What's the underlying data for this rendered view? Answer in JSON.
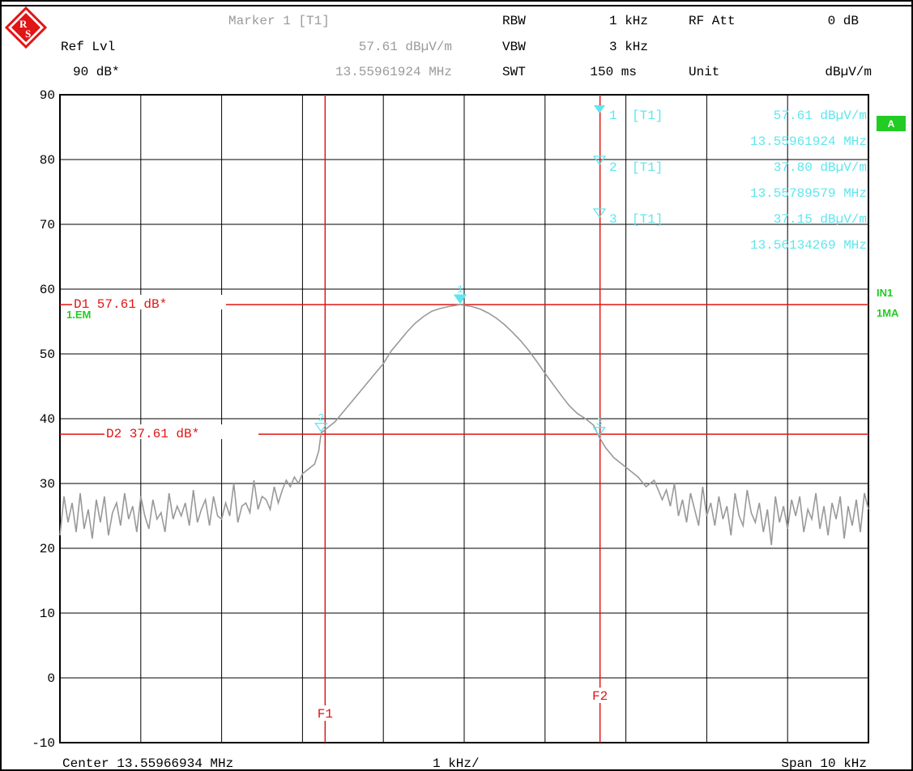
{
  "header": {
    "marker_title": "Marker 1 [T1]",
    "ref_lvl_label": "Ref Lvl",
    "ref_lvl_value": "90 dB*",
    "marker_level": "57.61 dBµV/m",
    "marker_freq": "13.55961924 MHz",
    "rbw_label": "RBW",
    "rbw_value": "1 kHz",
    "vbw_label": "VBW",
    "vbw_value": "3 kHz",
    "swt_label": "SWT",
    "swt_value": "150 ms",
    "rfatt_label": "RF Att",
    "rfatt_value": "0 dB",
    "unit_label": "Unit",
    "unit_value": "dBµV/m"
  },
  "marker_table": [
    {
      "id": "1",
      "tag": "[T1]",
      "level": "57.61 dBµV/m",
      "freq": "13.55961924 MHz"
    },
    {
      "id": "2",
      "tag": "[T1]",
      "level": "37.80 dBµV/m",
      "freq": "13.55789579 MHz"
    },
    {
      "id": "3",
      "tag": "[T1]",
      "level": "37.15 dBµV/m",
      "freq": "13.56134269 MHz"
    }
  ],
  "side_labels": {
    "a": "A",
    "in1": "IN1",
    "ma": "1MA",
    "trace_mode": "1.EM"
  },
  "footer": {
    "center": "Center 13.55966934 MHz",
    "div": "1 kHz/",
    "span": "Span 10 kHz"
  },
  "colors": {
    "trace": "#999999",
    "marker": "#5fe6ee",
    "lines": "#e01515",
    "status": "#22cc22",
    "grid": "#000000"
  },
  "chart_data": {
    "type": "line",
    "x_unit": "kHz offset from center",
    "xlim": [
      -5,
      5
    ],
    "ylim": [
      -10,
      90
    ],
    "yticks": [
      "90",
      "80",
      "70",
      "60",
      "50",
      "40",
      "30",
      "20",
      "10",
      "0",
      "-10"
    ],
    "grid": true,
    "display_lines": [
      {
        "label": "D1 57.61 dB*",
        "value": 57.61
      },
      {
        "label": "D2 37.61 dB*",
        "value": 37.61
      }
    ],
    "freq_lines": [
      {
        "label": "F1",
        "x": -1.72
      },
      {
        "label": "F2",
        "x": 1.68
      }
    ],
    "markers": [
      {
        "label": "1",
        "x": -0.05,
        "y": 57.61
      },
      {
        "label": "2",
        "x": -1.77,
        "y": 37.8
      },
      {
        "label": "3",
        "x": 1.67,
        "y": 37.15
      }
    ],
    "series": [
      {
        "values": [
          [
            -5.0,
            22.0
          ],
          [
            -4.95,
            28.0
          ],
          [
            -4.9,
            24.0
          ],
          [
            -4.85,
            27.0
          ],
          [
            -4.8,
            22.5
          ],
          [
            -4.75,
            28.5
          ],
          [
            -4.7,
            23.0
          ],
          [
            -4.65,
            26.0
          ],
          [
            -4.6,
            21.5
          ],
          [
            -4.55,
            27.5
          ],
          [
            -4.5,
            24.0
          ],
          [
            -4.45,
            28.0
          ],
          [
            -4.4,
            22.0
          ],
          [
            -4.35,
            25.5
          ],
          [
            -4.3,
            27.0
          ],
          [
            -4.25,
            23.5
          ],
          [
            -4.2,
            28.5
          ],
          [
            -4.15,
            24.5
          ],
          [
            -4.1,
            26.5
          ],
          [
            -4.05,
            22.5
          ],
          [
            -4.0,
            28.0
          ],
          [
            -3.95,
            25.0
          ],
          [
            -3.9,
            23.0
          ],
          [
            -3.85,
            27.5
          ],
          [
            -3.8,
            24.5
          ],
          [
            -3.75,
            25.5
          ],
          [
            -3.7,
            22.5
          ],
          [
            -3.65,
            28.5
          ],
          [
            -3.6,
            24.5
          ],
          [
            -3.55,
            26.5
          ],
          [
            -3.5,
            25.0
          ],
          [
            -3.45,
            27.0
          ],
          [
            -3.4,
            23.5
          ],
          [
            -3.35,
            29.0
          ],
          [
            -3.3,
            24.0
          ],
          [
            -3.25,
            26.0
          ],
          [
            -3.2,
            27.5
          ],
          [
            -3.15,
            23.5
          ],
          [
            -3.1,
            28.0
          ],
          [
            -3.05,
            25.0
          ],
          [
            -3.0,
            24.5
          ],
          [
            -2.95,
            27.0
          ],
          [
            -2.9,
            25.0
          ],
          [
            -2.85,
            30.0
          ],
          [
            -2.8,
            24.0
          ],
          [
            -2.75,
            26.5
          ],
          [
            -2.7,
            27.0
          ],
          [
            -2.65,
            25.5
          ],
          [
            -2.6,
            30.5
          ],
          [
            -2.55,
            26.0
          ],
          [
            -2.5,
            28.0
          ],
          [
            -2.45,
            27.5
          ],
          [
            -2.4,
            26.0
          ],
          [
            -2.35,
            29.5
          ],
          [
            -2.3,
            27.0
          ],
          [
            -2.25,
            29.0
          ],
          [
            -2.2,
            30.5
          ],
          [
            -2.15,
            29.5
          ],
          [
            -2.1,
            31.0
          ],
          [
            -2.05,
            30.0
          ],
          [
            -2.0,
            31.5
          ],
          [
            -1.95,
            32.0
          ],
          [
            -1.9,
            32.5
          ],
          [
            -1.85,
            33.0
          ],
          [
            -1.8,
            35.0
          ],
          [
            -1.77,
            37.8
          ],
          [
            -1.7,
            38.5
          ],
          [
            -1.6,
            39.5
          ],
          [
            -1.5,
            41.0
          ],
          [
            -1.4,
            42.5
          ],
          [
            -1.3,
            44.0
          ],
          [
            -1.2,
            45.5
          ],
          [
            -1.1,
            47.0
          ],
          [
            -1.0,
            48.5
          ],
          [
            -0.9,
            50.5
          ],
          [
            -0.8,
            52.0
          ],
          [
            -0.7,
            53.5
          ],
          [
            -0.6,
            54.8
          ],
          [
            -0.5,
            55.8
          ],
          [
            -0.4,
            56.6
          ],
          [
            -0.3,
            57.0
          ],
          [
            -0.2,
            57.3
          ],
          [
            -0.1,
            57.5
          ],
          [
            -0.05,
            57.61
          ],
          [
            0.0,
            57.5
          ],
          [
            0.1,
            57.3
          ],
          [
            0.2,
            56.9
          ],
          [
            0.3,
            56.3
          ],
          [
            0.4,
            55.5
          ],
          [
            0.5,
            54.5
          ],
          [
            0.6,
            53.3
          ],
          [
            0.7,
            52.0
          ],
          [
            0.8,
            50.5
          ],
          [
            0.9,
            48.8
          ],
          [
            1.0,
            47.0
          ],
          [
            1.1,
            45.3
          ],
          [
            1.2,
            43.6
          ],
          [
            1.3,
            42.0
          ],
          [
            1.4,
            40.8
          ],
          [
            1.5,
            40.0
          ],
          [
            1.6,
            39.0
          ],
          [
            1.67,
            37.15
          ],
          [
            1.75,
            35.5
          ],
          [
            1.85,
            34.0
          ],
          [
            1.95,
            33.0
          ],
          [
            2.05,
            32.0
          ],
          [
            2.15,
            31.0
          ],
          [
            2.25,
            29.5
          ],
          [
            2.35,
            30.5
          ],
          [
            2.45,
            27.5
          ],
          [
            2.5,
            29.0
          ],
          [
            2.55,
            26.5
          ],
          [
            2.6,
            30.0
          ],
          [
            2.65,
            25.0
          ],
          [
            2.7,
            27.5
          ],
          [
            2.75,
            24.0
          ],
          [
            2.8,
            28.5
          ],
          [
            2.85,
            26.0
          ],
          [
            2.9,
            23.5
          ],
          [
            2.95,
            29.5
          ],
          [
            3.0,
            25.0
          ],
          [
            3.05,
            27.0
          ],
          [
            3.1,
            23.5
          ],
          [
            3.15,
            28.0
          ],
          [
            3.2,
            24.5
          ],
          [
            3.25,
            26.5
          ],
          [
            3.3,
            22.0
          ],
          [
            3.35,
            28.5
          ],
          [
            3.4,
            25.0
          ],
          [
            3.45,
            23.5
          ],
          [
            3.5,
            29.0
          ],
          [
            3.55,
            25.5
          ],
          [
            3.6,
            24.0
          ],
          [
            3.65,
            27.0
          ],
          [
            3.7,
            22.5
          ],
          [
            3.75,
            26.0
          ],
          [
            3.8,
            20.5
          ],
          [
            3.85,
            28.0
          ],
          [
            3.9,
            24.0
          ],
          [
            3.95,
            26.5
          ],
          [
            4.0,
            23.0
          ],
          [
            4.05,
            27.5
          ],
          [
            4.1,
            25.0
          ],
          [
            4.15,
            28.0
          ],
          [
            4.2,
            22.5
          ],
          [
            4.25,
            26.0
          ],
          [
            4.3,
            24.5
          ],
          [
            4.35,
            28.5
          ],
          [
            4.4,
            23.0
          ],
          [
            4.45,
            26.5
          ],
          [
            4.5,
            22.0
          ],
          [
            4.55,
            27.0
          ],
          [
            4.6,
            24.5
          ],
          [
            4.65,
            28.0
          ],
          [
            4.7,
            21.5
          ],
          [
            4.75,
            26.5
          ],
          [
            4.8,
            23.5
          ],
          [
            4.85,
            27.5
          ],
          [
            4.9,
            22.5
          ],
          [
            4.95,
            28.5
          ],
          [
            5.0,
            26.0
          ]
        ]
      }
    ]
  }
}
